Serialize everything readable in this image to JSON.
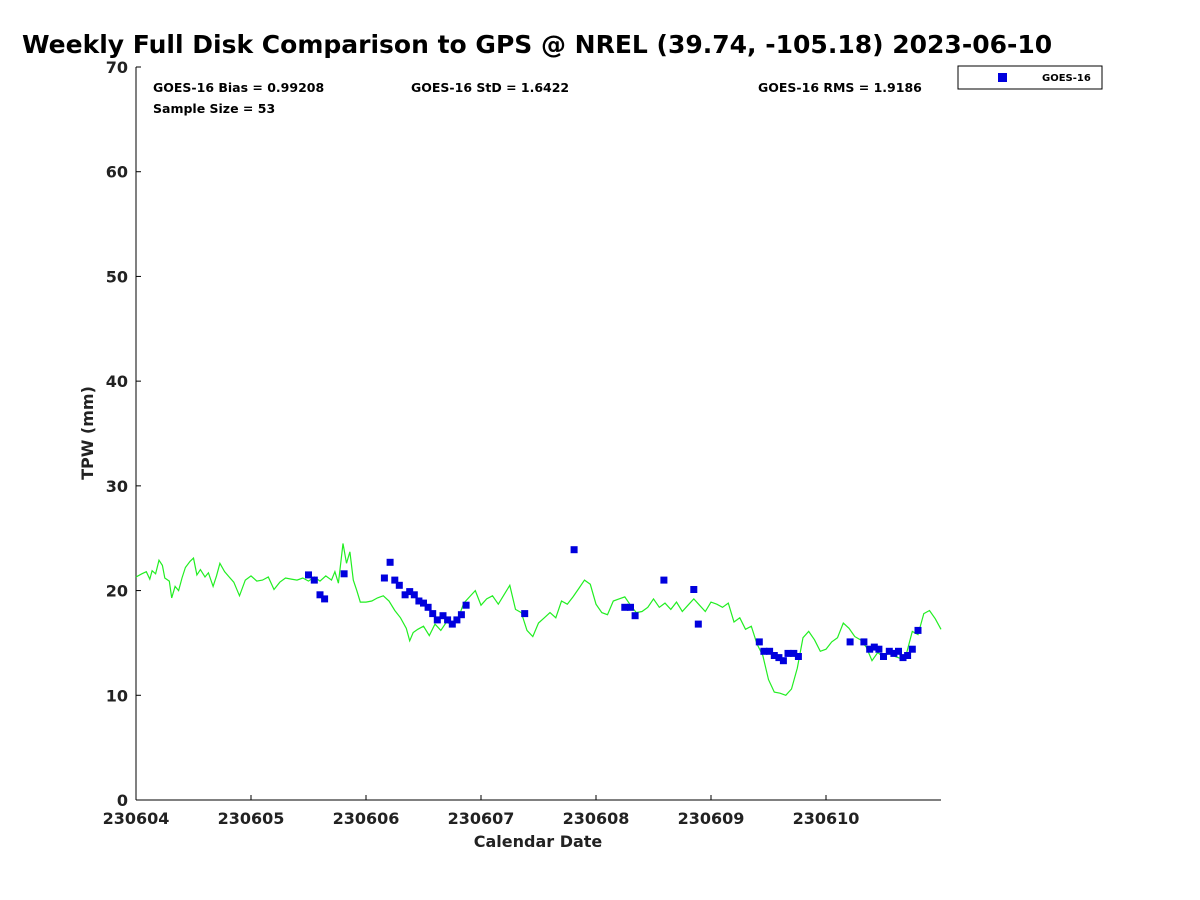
{
  "chart_data": {
    "type": "scatter",
    "title": "Weekly Full Disk Comparison to GPS @ NREL (39.74, -105.18) 2023-06-10",
    "xlabel": "Calendar Date",
    "ylabel": "TPW (mm)",
    "x_ticks": [
      "230604",
      "230605",
      "230606",
      "230607",
      "230608",
      "230609",
      "230610"
    ],
    "y_ticks": [
      0,
      10,
      20,
      30,
      40,
      50,
      60,
      70
    ],
    "xlim_days": [
      0,
      7
    ],
    "ylim": [
      0,
      70
    ],
    "grid": false,
    "legend_position": "outside-top-right",
    "stats": {
      "bias": "GOES-16 Bias = 0.99208",
      "std": "GOES-16 StD = 1.6422",
      "rms": "GOES-16 RMS = 1.9186",
      "sample": "Sample Size = 53"
    },
    "series": [
      {
        "name": "GOES-16",
        "color": "#0000dd",
        "marker": "square",
        "x_days": [
          1.5,
          1.55,
          1.6,
          1.64,
          1.81,
          2.16,
          2.21,
          2.25,
          2.29,
          2.34,
          2.38,
          2.42,
          2.46,
          2.5,
          2.54,
          2.58,
          2.62,
          2.67,
          2.71,
          2.75,
          2.79,
          2.83,
          2.87,
          3.38,
          3.81,
          4.25,
          4.3,
          4.34,
          4.59,
          4.85,
          4.89,
          5.42,
          5.46,
          5.51,
          5.55,
          5.59,
          5.63,
          5.67,
          5.72,
          5.76,
          6.21,
          6.33,
          6.38,
          6.42,
          6.46,
          6.5,
          6.55,
          6.59,
          6.63,
          6.67,
          6.71,
          6.75,
          6.8
        ],
        "values": [
          21.5,
          21.0,
          19.6,
          19.2,
          21.6,
          21.2,
          22.7,
          21.0,
          20.5,
          19.6,
          19.9,
          19.6,
          19.0,
          18.8,
          18.4,
          17.8,
          17.2,
          17.6,
          17.2,
          16.8,
          17.2,
          17.7,
          18.6,
          17.8,
          23.9,
          18.4,
          18.4,
          17.6,
          21.0,
          20.1,
          16.8,
          15.1,
          14.2,
          14.2,
          13.8,
          13.6,
          13.3,
          14.0,
          14.0,
          13.7,
          15.1,
          15.1,
          14.4,
          14.6,
          14.4,
          13.7,
          14.2,
          14.0,
          14.2,
          13.6,
          13.8,
          14.4,
          16.2
        ]
      },
      {
        "color": "#22ee22",
        "line": true,
        "x_days": [
          0.0,
          0.05,
          0.09,
          0.12,
          0.14,
          0.17,
          0.2,
          0.23,
          0.25,
          0.29,
          0.31,
          0.34,
          0.37,
          0.4,
          0.43,
          0.47,
          0.5,
          0.53,
          0.56,
          0.6,
          0.63,
          0.67,
          0.7,
          0.73,
          0.77,
          0.81,
          0.85,
          0.9,
          0.95,
          1.0,
          1.05,
          1.1,
          1.15,
          1.2,
          1.25,
          1.3,
          1.35,
          1.4,
          1.45,
          1.5,
          1.55,
          1.6,
          1.65,
          1.7,
          1.73,
          1.76,
          1.8,
          1.83,
          1.86,
          1.89,
          1.92,
          1.95,
          2.0,
          2.05,
          2.1,
          2.15,
          2.2,
          2.25,
          2.3,
          2.35,
          2.38,
          2.41,
          2.45,
          2.5,
          2.55,
          2.6,
          2.65,
          2.7,
          2.75,
          2.8,
          2.85,
          2.9,
          2.95,
          3.0,
          3.05,
          3.1,
          3.15,
          3.2,
          3.25,
          3.3,
          3.35,
          3.4,
          3.45,
          3.5,
          3.55,
          3.6,
          3.65,
          3.7,
          3.75,
          3.8,
          3.85,
          3.9,
          3.95,
          4.0,
          4.05,
          4.1,
          4.15,
          4.2,
          4.25,
          4.3,
          4.35,
          4.4,
          4.45,
          4.5,
          4.55,
          4.6,
          4.65,
          4.7,
          4.75,
          4.8,
          4.85,
          4.9,
          4.95,
          5.0,
          5.05,
          5.1,
          5.15,
          5.2,
          5.25,
          5.3,
          5.35,
          5.4,
          5.45,
          5.5,
          5.55,
          5.6,
          5.65,
          5.7,
          5.75,
          5.8,
          5.85,
          5.9,
          5.95,
          6.0,
          6.05,
          6.1,
          6.15,
          6.2,
          6.25,
          6.3,
          6.35,
          6.4,
          6.45,
          6.5,
          6.55,
          6.6,
          6.65,
          6.7,
          6.75,
          6.8,
          6.85,
          6.9,
          6.95,
          7.0
        ],
        "values": [
          21.3,
          21.6,
          21.8,
          21.1,
          21.9,
          21.6,
          22.9,
          22.4,
          21.2,
          20.9,
          19.3,
          20.4,
          20.0,
          21.2,
          22.2,
          22.8,
          23.1,
          21.5,
          22.0,
          21.3,
          21.7,
          20.4,
          21.4,
          22.6,
          21.8,
          21.3,
          20.8,
          19.5,
          21.0,
          21.4,
          20.9,
          21.0,
          21.3,
          20.1,
          20.8,
          21.2,
          21.1,
          21.0,
          21.2,
          20.9,
          21.3,
          20.9,
          21.4,
          21.0,
          21.8,
          20.7,
          24.5,
          22.6,
          23.7,
          21.0,
          20.0,
          18.9,
          18.9,
          19.0,
          19.3,
          19.5,
          19.0,
          18.1,
          17.4,
          16.4,
          15.2,
          16.0,
          16.3,
          16.6,
          15.7,
          16.8,
          16.2,
          17.0,
          16.7,
          17.3,
          18.8,
          19.4,
          20.0,
          18.6,
          19.2,
          19.5,
          18.7,
          19.6,
          20.5,
          18.2,
          17.9,
          16.2,
          15.6,
          16.9,
          17.4,
          17.9,
          17.4,
          19.0,
          18.7,
          19.4,
          20.2,
          21.0,
          20.6,
          18.7,
          17.9,
          17.7,
          19.0,
          19.2,
          19.4,
          18.6,
          17.9,
          18.0,
          18.4,
          19.2,
          18.4,
          18.8,
          18.2,
          18.9,
          18.0,
          18.6,
          19.2,
          18.6,
          18.0,
          18.9,
          18.7,
          18.4,
          18.8,
          17.0,
          17.4,
          16.3,
          16.6,
          14.9,
          13.8,
          11.5,
          10.3,
          10.2,
          10.0,
          10.6,
          12.6,
          15.5,
          16.1,
          15.3,
          14.2,
          14.4,
          15.1,
          15.5,
          16.9,
          16.4,
          15.6,
          15.3,
          14.6,
          13.3,
          14.1,
          13.6,
          14.1,
          13.7,
          13.5,
          14.0,
          16.1,
          15.8,
          17.8,
          18.1,
          17.3,
          16.3
        ]
      }
    ]
  },
  "legend": {
    "label": "GOES-16"
  }
}
